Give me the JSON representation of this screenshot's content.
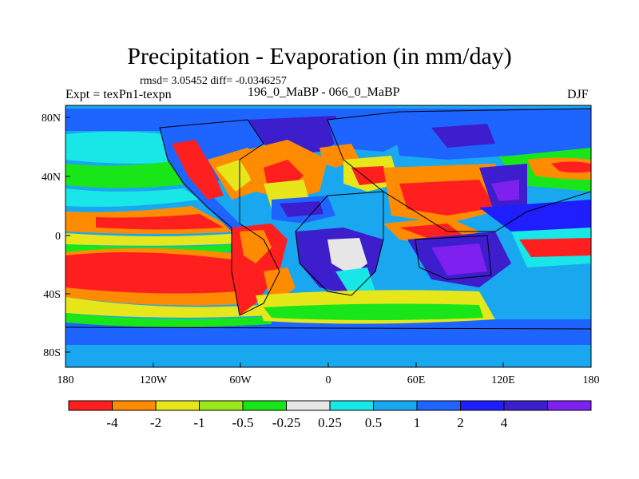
{
  "title": "Precipitation - Evaporation (in mm/day)",
  "stats": "rmsd= 3.05452  diff= -0.0346257",
  "experiment": "Expt = texPn1-texpn",
  "period": "196_0_MaBP - 066_0_MaBP",
  "season": "DJF",
  "lat_ticks": [
    "80N",
    "40N",
    "0",
    "40S",
    "80S"
  ],
  "lon_ticks": [
    "180",
    "120W",
    "60W",
    "0",
    "60E",
    "120E",
    "180"
  ],
  "colorbar": {
    "colors": [
      "#ff1f1f",
      "#ff8c00",
      "#e6e61a",
      "#99e619",
      "#19e619",
      "#e6e6e6",
      "#19e6e6",
      "#19a8f0",
      "#1e64ff",
      "#1e1eff",
      "#3c1ecc",
      "#7d20f0"
    ],
    "labels": [
      "-4",
      "-2",
      "-1",
      "-0.5",
      "-0.25",
      "0.25",
      "0.5",
      "1",
      "2",
      "4"
    ]
  }
}
